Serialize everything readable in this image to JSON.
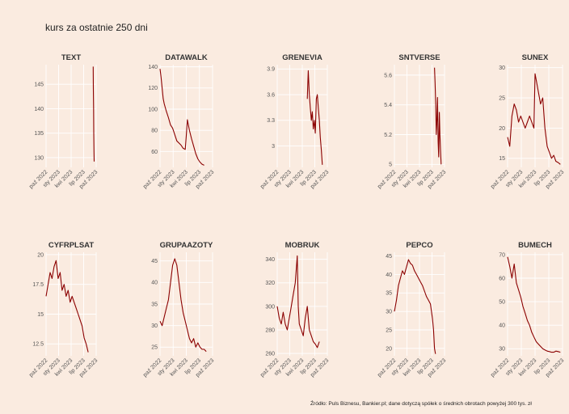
{
  "title": "kurs za ostatnie 250 dni",
  "caption": "Źródło: Puls Biznesu, Bankier.pl; dane dotyczą spółek o średnich obrotach powyżej 300 tys. zł",
  "colors": {
    "background": "#faebe0",
    "line": "#8b0000",
    "grid": "#ffffff"
  },
  "chart_data": [
    {
      "type": "line",
      "name": "TEXT",
      "xticks": [
        "paź 2022",
        "sty 2023",
        "kwi 2023",
        "lip 2023",
        "paź 2023"
      ],
      "yticks": [
        130,
        135,
        140,
        145
      ],
      "ylim": [
        128,
        149
      ],
      "xlim": [
        0,
        250
      ],
      "start": 235,
      "points": [
        [
          235,
          148.6
        ],
        [
          236,
          144
        ],
        [
          237,
          140
        ],
        [
          238,
          135
        ],
        [
          239,
          131
        ],
        [
          240,
          129.2
        ]
      ]
    },
    {
      "type": "line",
      "name": "DATAWALK",
      "xticks": [
        "paź 2022",
        "sty 2023",
        "kwi 2023",
        "lip 2023",
        "paź 2023"
      ],
      "yticks": [
        60,
        80,
        100,
        120,
        140
      ],
      "ylim": [
        45,
        142
      ],
      "xlim": [
        0,
        250
      ],
      "start": 0,
      "points": [
        [
          0,
          138
        ],
        [
          5,
          130
        ],
        [
          10,
          120
        ],
        [
          15,
          110
        ],
        [
          20,
          105
        ],
        [
          30,
          98
        ],
        [
          40,
          92
        ],
        [
          50,
          85
        ],
        [
          60,
          82
        ],
        [
          70,
          76
        ],
        [
          80,
          70
        ],
        [
          90,
          68
        ],
        [
          100,
          66
        ],
        [
          110,
          63
        ],
        [
          120,
          62
        ],
        [
          125,
          75
        ],
        [
          130,
          90
        ],
        [
          135,
          85
        ],
        [
          140,
          80
        ],
        [
          150,
          72
        ],
        [
          160,
          65
        ],
        [
          170,
          58
        ],
        [
          180,
          53
        ],
        [
          190,
          50
        ],
        [
          200,
          48
        ],
        [
          210,
          47
        ]
      ]
    },
    {
      "type": "line",
      "name": "GRENEVIA",
      "xticks": [
        "paź 2022",
        "sty 2023",
        "kwi 2023",
        "lip 2023",
        "paź 2023"
      ],
      "yticks": [
        3.0,
        3.3,
        3.6,
        3.9
      ],
      "ylim": [
        2.75,
        3.95
      ],
      "xlim": [
        0,
        250
      ],
      "start": 150,
      "points": [
        [
          150,
          3.55
        ],
        [
          155,
          3.88
        ],
        [
          160,
          3.6
        ],
        [
          165,
          3.45
        ],
        [
          170,
          3.3
        ],
        [
          175,
          3.4
        ],
        [
          180,
          3.2
        ],
        [
          185,
          3.3
        ],
        [
          190,
          3.15
        ],
        [
          195,
          3.55
        ],
        [
          200,
          3.6
        ],
        [
          205,
          3.45
        ],
        [
          210,
          3.3
        ],
        [
          215,
          3.1
        ],
        [
          220,
          2.95
        ],
        [
          225,
          2.78
        ]
      ]
    },
    {
      "type": "line",
      "name": "SNTVERSE",
      "xticks": [
        "paź 2022",
        "sty 2023",
        "kwi 2023",
        "lip 2023",
        "paź 2023"
      ],
      "yticks": [
        5.0,
        5.2,
        5.4,
        5.6
      ],
      "ylim": [
        4.98,
        5.67
      ],
      "xlim": [
        0,
        250
      ],
      "start": 200,
      "points": [
        [
          200,
          5.65
        ],
        [
          203,
          5.55
        ],
        [
          206,
          5.4
        ],
        [
          209,
          5.2
        ],
        [
          212,
          5.3
        ],
        [
          215,
          5.45
        ],
        [
          218,
          5.15
        ],
        [
          221,
          5.05
        ],
        [
          224,
          5.35
        ],
        [
          227,
          5.2
        ],
        [
          230,
          5.1
        ],
        [
          233,
          5.0
        ]
      ]
    },
    {
      "type": "line",
      "name": "SUNEX",
      "xticks": [
        "paź 2022",
        "sty 2023",
        "kwi 2023",
        "lip 2023",
        "paź 2023"
      ],
      "yticks": [
        15,
        20,
        25,
        30
      ],
      "ylim": [
        13.5,
        30.5
      ],
      "xlim": [
        0,
        250
      ],
      "start": 0,
      "points": [
        [
          0,
          18.5
        ],
        [
          10,
          17
        ],
        [
          20,
          22
        ],
        [
          30,
          24
        ],
        [
          40,
          23
        ],
        [
          50,
          21
        ],
        [
          60,
          22
        ],
        [
          70,
          21
        ],
        [
          80,
          20
        ],
        [
          90,
          21
        ],
        [
          100,
          22
        ],
        [
          110,
          21
        ],
        [
          120,
          20
        ],
        [
          125,
          29
        ],
        [
          130,
          28
        ],
        [
          140,
          26
        ],
        [
          150,
          24
        ],
        [
          160,
          25
        ],
        [
          170,
          20
        ],
        [
          180,
          17
        ],
        [
          190,
          16
        ],
        [
          200,
          15
        ],
        [
          210,
          15.5
        ],
        [
          220,
          14.5
        ],
        [
          230,
          14.3
        ],
        [
          240,
          14
        ]
      ]
    },
    {
      "type": "line",
      "name": "CYFRPLSAT",
      "xticks": [
        "paź 2022",
        "sty 2023",
        "kwi 2023",
        "lip 2023",
        "paź 2023"
      ],
      "yticks": [
        12.5,
        15.0,
        17.5,
        20.0
      ],
      "ylim": [
        11.5,
        20.2
      ],
      "xlim": [
        0,
        250
      ],
      "start": 0,
      "points": [
        [
          0,
          16.5
        ],
        [
          10,
          17.5
        ],
        [
          20,
          18.5
        ],
        [
          30,
          18
        ],
        [
          40,
          19
        ],
        [
          50,
          19.5
        ],
        [
          60,
          18
        ],
        [
          70,
          18.5
        ],
        [
          80,
          17
        ],
        [
          90,
          17.5
        ],
        [
          100,
          16.5
        ],
        [
          110,
          17
        ],
        [
          120,
          16
        ],
        [
          130,
          16.5
        ],
        [
          140,
          16
        ],
        [
          150,
          15.5
        ],
        [
          160,
          15
        ],
        [
          170,
          14.5
        ],
        [
          180,
          14
        ],
        [
          190,
          13
        ],
        [
          200,
          12.5
        ],
        [
          210,
          11.8
        ]
      ]
    },
    {
      "type": "line",
      "name": "GRUPAAZOTY",
      "xticks": [
        "paź 2022",
        "sty 2023",
        "kwi 2023",
        "lip 2023",
        "paź 2023"
      ],
      "yticks": [
        25,
        30,
        35,
        40,
        45
      ],
      "ylim": [
        23,
        47
      ],
      "xlim": [
        0,
        250
      ],
      "start": 0,
      "points": [
        [
          0,
          31
        ],
        [
          10,
          30
        ],
        [
          20,
          32
        ],
        [
          30,
          34
        ],
        [
          40,
          36
        ],
        [
          50,
          40
        ],
        [
          60,
          44
        ],
        [
          70,
          45.5
        ],
        [
          80,
          44
        ],
        [
          90,
          40
        ],
        [
          100,
          36
        ],
        [
          110,
          33
        ],
        [
          120,
          31
        ],
        [
          130,
          29
        ],
        [
          140,
          27
        ],
        [
          150,
          26
        ],
        [
          160,
          27
        ],
        [
          170,
          25
        ],
        [
          180,
          26
        ],
        [
          190,
          25
        ],
        [
          200,
          24.5
        ],
        [
          210,
          24.5
        ],
        [
          220,
          24
        ]
      ]
    },
    {
      "type": "line",
      "name": "MOBRUK",
      "xticks": [
        "paź 2022",
        "sty 2023",
        "kwi 2023",
        "lip 2023",
        "paź 2023"
      ],
      "yticks": [
        260,
        280,
        300,
        320,
        340
      ],
      "ylim": [
        258,
        346
      ],
      "xlim": [
        0,
        250
      ],
      "start": 0,
      "points": [
        [
          0,
          300
        ],
        [
          10,
          290
        ],
        [
          20,
          285
        ],
        [
          30,
          295
        ],
        [
          40,
          285
        ],
        [
          50,
          280
        ],
        [
          60,
          290
        ],
        [
          70,
          300
        ],
        [
          80,
          310
        ],
        [
          90,
          320
        ],
        [
          100,
          343
        ],
        [
          105,
          300
        ],
        [
          110,
          285
        ],
        [
          120,
          280
        ],
        [
          130,
          275
        ],
        [
          140,
          290
        ],
        [
          150,
          300
        ],
        [
          160,
          280
        ],
        [
          170,
          275
        ],
        [
          180,
          270
        ],
        [
          190,
          268
        ],
        [
          200,
          265
        ],
        [
          210,
          270
        ]
      ]
    },
    {
      "type": "line",
      "name": "PEPCO",
      "xticks": [
        "paź 2022",
        "sty 2023",
        "kwi 2023",
        "lip 2023",
        "paź 2023"
      ],
      "yticks": [
        20,
        25,
        30,
        35,
        40,
        45
      ],
      "ylim": [
        18,
        46
      ],
      "xlim": [
        0,
        250
      ],
      "start": 0,
      "points": [
        [
          0,
          30
        ],
        [
          10,
          33
        ],
        [
          20,
          37
        ],
        [
          30,
          39
        ],
        [
          40,
          41
        ],
        [
          50,
          40
        ],
        [
          60,
          42
        ],
        [
          70,
          44
        ],
        [
          80,
          43
        ],
        [
          90,
          42.5
        ],
        [
          100,
          41
        ],
        [
          110,
          40
        ],
        [
          120,
          39
        ],
        [
          130,
          38
        ],
        [
          140,
          37
        ],
        [
          150,
          35.5
        ],
        [
          160,
          34
        ],
        [
          170,
          33
        ],
        [
          180,
          32
        ],
        [
          190,
          28
        ],
        [
          195,
          25
        ],
        [
          200,
          20
        ],
        [
          205,
          18.5
        ]
      ]
    },
    {
      "type": "line",
      "name": "BUMECH",
      "xticks": [
        "paź 2022",
        "sty 2023",
        "kwi 2023",
        "lip 2023",
        "paź 2023"
      ],
      "yticks": [
        30,
        40,
        50,
        60,
        70
      ],
      "ylim": [
        27,
        71
      ],
      "xlim": [
        0,
        250
      ],
      "start": 0,
      "points": [
        [
          0,
          69
        ],
        [
          10,
          65
        ],
        [
          20,
          60
        ],
        [
          30,
          66
        ],
        [
          40,
          58
        ],
        [
          50,
          55
        ],
        [
          60,
          52
        ],
        [
          70,
          48
        ],
        [
          80,
          45
        ],
        [
          90,
          42
        ],
        [
          100,
          40
        ],
        [
          110,
          37
        ],
        [
          120,
          35
        ],
        [
          130,
          33
        ],
        [
          140,
          32
        ],
        [
          150,
          31
        ],
        [
          160,
          30
        ],
        [
          170,
          29.5
        ],
        [
          180,
          29
        ],
        [
          190,
          28.8
        ],
        [
          200,
          28.5
        ],
        [
          210,
          28.5
        ],
        [
          220,
          29
        ],
        [
          230,
          28.8
        ],
        [
          240,
          28.5
        ]
      ]
    }
  ]
}
